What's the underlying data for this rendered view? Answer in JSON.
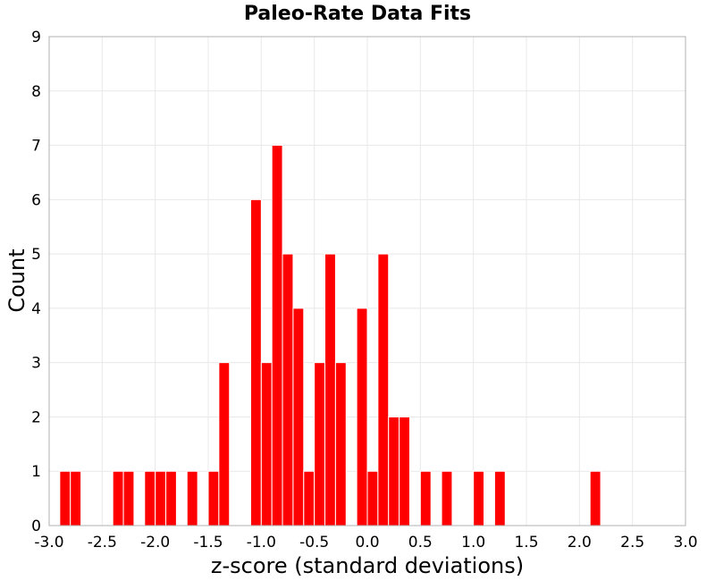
{
  "chart_data": {
    "type": "bar",
    "title": "Paleo-Rate Data Fits",
    "xlabel": "z-score (standard deviations)",
    "ylabel": "Count",
    "xlim": [
      -3.0,
      3.0
    ],
    "ylim": [
      0,
      9
    ],
    "x_ticks": [
      "-3.0",
      "-2.5",
      "-2.0",
      "-1.5",
      "-1.0",
      "-0.5",
      "0.0",
      "0.5",
      "1.0",
      "1.5",
      "2.0",
      "2.5",
      "3.0"
    ],
    "y_ticks": [
      "0",
      "1",
      "2",
      "3",
      "4",
      "5",
      "6",
      "7",
      "8",
      "9"
    ],
    "bin_width": 0.1,
    "grid": true,
    "bar_color": "#ff0000",
    "bins": [
      {
        "x": -2.85,
        "count": 1
      },
      {
        "x": -2.75,
        "count": 1
      },
      {
        "x": -2.35,
        "count": 1
      },
      {
        "x": -2.25,
        "count": 1
      },
      {
        "x": -2.05,
        "count": 1
      },
      {
        "x": -1.95,
        "count": 1
      },
      {
        "x": -1.85,
        "count": 1
      },
      {
        "x": -1.65,
        "count": 1
      },
      {
        "x": -1.45,
        "count": 1
      },
      {
        "x": -1.35,
        "count": 3
      },
      {
        "x": -1.05,
        "count": 6
      },
      {
        "x": -0.95,
        "count": 3
      },
      {
        "x": -0.85,
        "count": 7
      },
      {
        "x": -0.75,
        "count": 5
      },
      {
        "x": -0.65,
        "count": 4
      },
      {
        "x": -0.55,
        "count": 1
      },
      {
        "x": -0.45,
        "count": 3
      },
      {
        "x": -0.35,
        "count": 5
      },
      {
        "x": -0.25,
        "count": 3
      },
      {
        "x": -0.05,
        "count": 4
      },
      {
        "x": 0.05,
        "count": 1
      },
      {
        "x": 0.15,
        "count": 5
      },
      {
        "x": 0.25,
        "count": 2
      },
      {
        "x": 0.35,
        "count": 2
      },
      {
        "x": 0.55,
        "count": 1
      },
      {
        "x": 0.75,
        "count": 1
      },
      {
        "x": 1.05,
        "count": 1
      },
      {
        "x": 1.25,
        "count": 1
      },
      {
        "x": 2.15,
        "count": 1
      }
    ]
  }
}
